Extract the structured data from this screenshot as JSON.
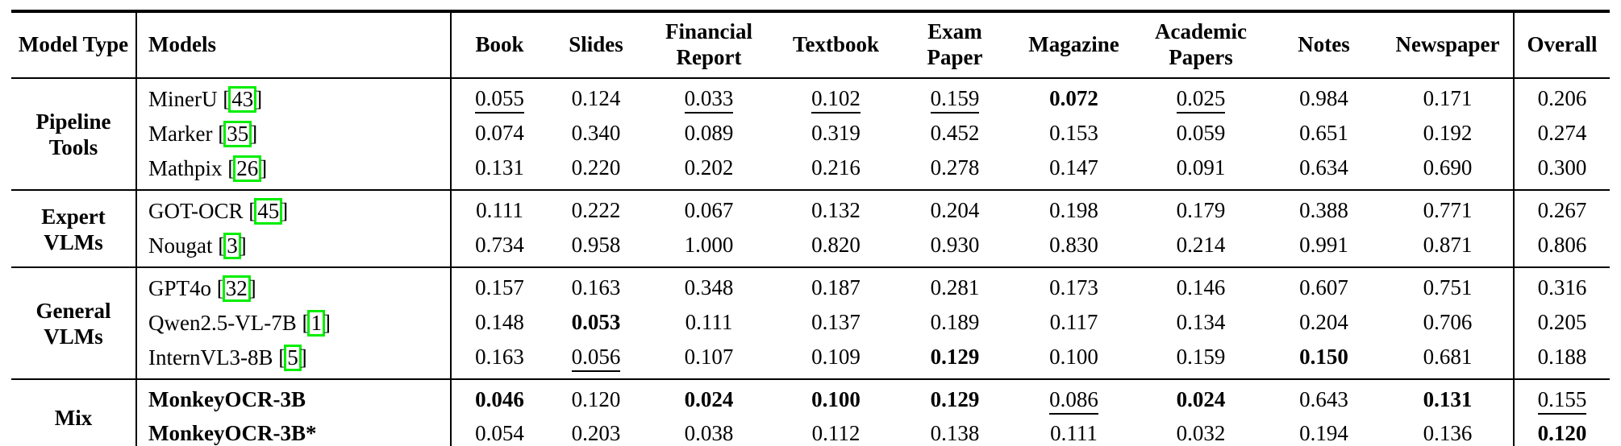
{
  "table": {
    "link_box_color": "#00ee00",
    "headers": [
      "Model Type",
      "Models",
      "Book",
      "Slides",
      "Financial Report",
      "Textbook",
      "Exam Paper",
      "Magazine",
      "Academic Papers",
      "Notes",
      "Newspaper",
      "Overall"
    ],
    "sections": [
      {
        "group": "Pipeline Tools",
        "rows": [
          {
            "model": "MinerU",
            "cite": "43",
            "bold_model": false,
            "values": [
              {
                "v": "0.055",
                "s": "u"
              },
              {
                "v": "0.124",
                "s": "n"
              },
              {
                "v": "0.033",
                "s": "u"
              },
              {
                "v": "0.102",
                "s": "u"
              },
              {
                "v": "0.159",
                "s": "u"
              },
              {
                "v": "0.072",
                "s": "b"
              },
              {
                "v": "0.025",
                "s": "u"
              },
              {
                "v": "0.984",
                "s": "n"
              },
              {
                "v": "0.171",
                "s": "n"
              },
              {
                "v": "0.206",
                "s": "n"
              }
            ]
          },
          {
            "model": "Marker",
            "cite": "35",
            "bold_model": false,
            "values": [
              {
                "v": "0.074",
                "s": "n"
              },
              {
                "v": "0.340",
                "s": "n"
              },
              {
                "v": "0.089",
                "s": "n"
              },
              {
                "v": "0.319",
                "s": "n"
              },
              {
                "v": "0.452",
                "s": "n"
              },
              {
                "v": "0.153",
                "s": "n"
              },
              {
                "v": "0.059",
                "s": "n"
              },
              {
                "v": "0.651",
                "s": "n"
              },
              {
                "v": "0.192",
                "s": "n"
              },
              {
                "v": "0.274",
                "s": "n"
              }
            ]
          },
          {
            "model": "Mathpix",
            "cite": "26",
            "bold_model": false,
            "values": [
              {
                "v": "0.131",
                "s": "n"
              },
              {
                "v": "0.220",
                "s": "n"
              },
              {
                "v": "0.202",
                "s": "n"
              },
              {
                "v": "0.216",
                "s": "n"
              },
              {
                "v": "0.278",
                "s": "n"
              },
              {
                "v": "0.147",
                "s": "n"
              },
              {
                "v": "0.091",
                "s": "n"
              },
              {
                "v": "0.634",
                "s": "n"
              },
              {
                "v": "0.690",
                "s": "n"
              },
              {
                "v": "0.300",
                "s": "n"
              }
            ]
          }
        ]
      },
      {
        "group": "Expert VLMs",
        "rows": [
          {
            "model": "GOT-OCR",
            "cite": "45",
            "bold_model": false,
            "values": [
              {
                "v": "0.111",
                "s": "n"
              },
              {
                "v": "0.222",
                "s": "n"
              },
              {
                "v": "0.067",
                "s": "n"
              },
              {
                "v": "0.132",
                "s": "n"
              },
              {
                "v": "0.204",
                "s": "n"
              },
              {
                "v": "0.198",
                "s": "n"
              },
              {
                "v": "0.179",
                "s": "n"
              },
              {
                "v": "0.388",
                "s": "n"
              },
              {
                "v": "0.771",
                "s": "n"
              },
              {
                "v": "0.267",
                "s": "n"
              }
            ]
          },
          {
            "model": "Nougat",
            "cite": "3",
            "bold_model": false,
            "values": [
              {
                "v": "0.734",
                "s": "n"
              },
              {
                "v": "0.958",
                "s": "n"
              },
              {
                "v": "1.000",
                "s": "n"
              },
              {
                "v": "0.820",
                "s": "n"
              },
              {
                "v": "0.930",
                "s": "n"
              },
              {
                "v": "0.830",
                "s": "n"
              },
              {
                "v": "0.214",
                "s": "n"
              },
              {
                "v": "0.991",
                "s": "n"
              },
              {
                "v": "0.871",
                "s": "n"
              },
              {
                "v": "0.806",
                "s": "n"
              }
            ]
          }
        ]
      },
      {
        "group": "General VLMs",
        "rows": [
          {
            "model": "GPT4o",
            "cite": "32",
            "bold_model": false,
            "values": [
              {
                "v": "0.157",
                "s": "n"
              },
              {
                "v": "0.163",
                "s": "n"
              },
              {
                "v": "0.348",
                "s": "n"
              },
              {
                "v": "0.187",
                "s": "n"
              },
              {
                "v": "0.281",
                "s": "n"
              },
              {
                "v": "0.173",
                "s": "n"
              },
              {
                "v": "0.146",
                "s": "n"
              },
              {
                "v": "0.607",
                "s": "n"
              },
              {
                "v": "0.751",
                "s": "n"
              },
              {
                "v": "0.316",
                "s": "n"
              }
            ]
          },
          {
            "model": "Qwen2.5-VL-7B",
            "cite": "1",
            "bold_model": false,
            "values": [
              {
                "v": "0.148",
                "s": "n"
              },
              {
                "v": "0.053",
                "s": "b"
              },
              {
                "v": "0.111",
                "s": "n"
              },
              {
                "v": "0.137",
                "s": "n"
              },
              {
                "v": "0.189",
                "s": "n"
              },
              {
                "v": "0.117",
                "s": "n"
              },
              {
                "v": "0.134",
                "s": "n"
              },
              {
                "v": "0.204",
                "s": "n"
              },
              {
                "v": "0.706",
                "s": "n"
              },
              {
                "v": "0.205",
                "s": "n"
              }
            ]
          },
          {
            "model": "InternVL3-8B",
            "cite": "5",
            "bold_model": false,
            "values": [
              {
                "v": "0.163",
                "s": "n"
              },
              {
                "v": "0.056",
                "s": "u"
              },
              {
                "v": "0.107",
                "s": "n"
              },
              {
                "v": "0.109",
                "s": "n"
              },
              {
                "v": "0.129",
                "s": "b"
              },
              {
                "v": "0.100",
                "s": "n"
              },
              {
                "v": "0.159",
                "s": "n"
              },
              {
                "v": "0.150",
                "s": "b"
              },
              {
                "v": "0.681",
                "s": "n"
              },
              {
                "v": "0.188",
                "s": "n"
              }
            ]
          }
        ]
      },
      {
        "group": "Mix",
        "rows": [
          {
            "model": "MonkeyOCR-3B",
            "cite": "",
            "bold_model": true,
            "values": [
              {
                "v": "0.046",
                "s": "b"
              },
              {
                "v": "0.120",
                "s": "n"
              },
              {
                "v": "0.024",
                "s": "b"
              },
              {
                "v": "0.100",
                "s": "b"
              },
              {
                "v": "0.129",
                "s": "b"
              },
              {
                "v": "0.086",
                "s": "u"
              },
              {
                "v": "0.024",
                "s": "b"
              },
              {
                "v": "0.643",
                "s": "n"
              },
              {
                "v": "0.131",
                "s": "b"
              },
              {
                "v": "0.155",
                "s": "u"
              }
            ]
          },
          {
            "model": "MonkeyOCR-3B*",
            "cite": "",
            "bold_model": true,
            "values": [
              {
                "v": "0.054",
                "s": "n"
              },
              {
                "v": "0.203",
                "s": "n"
              },
              {
                "v": "0.038",
                "s": "n"
              },
              {
                "v": "0.112",
                "s": "n"
              },
              {
                "v": "0.138",
                "s": "n"
              },
              {
                "v": "0.111",
                "s": "n"
              },
              {
                "v": "0.032",
                "s": "n"
              },
              {
                "v": "0.194",
                "s": "u"
              },
              {
                "v": "0.136",
                "s": "u"
              },
              {
                "v": "0.120",
                "s": "b"
              }
            ]
          }
        ]
      }
    ]
  }
}
